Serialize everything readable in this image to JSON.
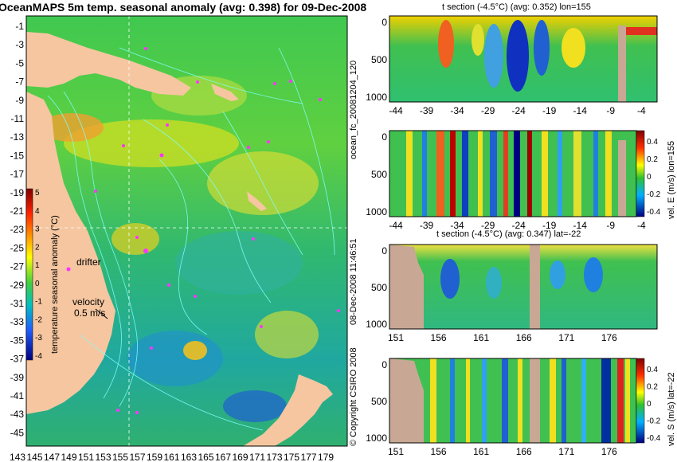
{
  "title": "OceanMAPS 5m temp. seasonal anomaly (avg: 0.398) for 09-Dec-2008",
  "map": {
    "lat_ticks": [
      "-1",
      "-3",
      "-5",
      "-7",
      "-9",
      "-11",
      "-13",
      "-15",
      "-17",
      "-19",
      "-21",
      "-23",
      "-25",
      "-27",
      "-29",
      "-31",
      "-33",
      "-35",
      "-37",
      "-39",
      "-41",
      "-43",
      "-45"
    ],
    "lon_ticks": [
      "143",
      "145",
      "147",
      "149",
      "151",
      "153",
      "155",
      "157",
      "159",
      "161",
      "163",
      "165",
      "167",
      "169",
      "171",
      "173",
      "175",
      "177",
      "179"
    ],
    "colorbar": {
      "label": "temperature seasonal anomaly (°C)",
      "ticks": [
        "5",
        "4",
        "3",
        "2",
        "1",
        "0",
        "-1",
        "-2",
        "-3",
        "-4"
      ]
    },
    "annotations": {
      "drifter": "drifter",
      "velocity": "velocity",
      "velocity_value": "0.5 m/s"
    }
  },
  "side_text": {
    "run_id": "ocean_fc_20081204_120",
    "timestamp": "08-Dec-2008 11:46:51",
    "copyright": "© Copyright CSIRO 2008"
  },
  "panels": [
    {
      "title": "t section (-4.5°C) (avg: 0.352) lon=155",
      "y_ticks": [
        "0",
        "500",
        "1000"
      ],
      "x_ticks": [
        "-44",
        "-39",
        "-34",
        "-29",
        "-24",
        "-19",
        "-14",
        "-9",
        "-4"
      ]
    },
    {
      "title": "",
      "y_ticks": [
        "0",
        "500",
        "1000"
      ],
      "x_ticks": [
        "-44",
        "-39",
        "-34",
        "-29",
        "-24",
        "-19",
        "-14",
        "-9",
        "-4"
      ],
      "colorbar_label": "vel. E (m/s) lon=155",
      "colorbar_ticks": [
        "0.4",
        "0.2",
        "0",
        "-0.2",
        "-0.4"
      ]
    },
    {
      "title": "t section (-4.5°C) (avg: 0.347) lat=-22",
      "y_ticks": [
        "0",
        "500",
        "1000"
      ],
      "x_ticks": [
        "151",
        "156",
        "161",
        "166",
        "171",
        "176"
      ]
    },
    {
      "title": "",
      "y_ticks": [
        "0",
        "500",
        "1000"
      ],
      "x_ticks": [
        "151",
        "156",
        "161",
        "166",
        "171",
        "176"
      ],
      "colorbar_label": "vel. S (m/s) lat=-22",
      "colorbar_ticks": [
        "0.4",
        "0.2",
        "0",
        "-0.2",
        "-0.4"
      ]
    }
  ],
  "colors": {
    "land": "#f5c6a0",
    "section_land": "#c8a894",
    "contour": "#7fffff",
    "drifter": "#ff33ff"
  }
}
